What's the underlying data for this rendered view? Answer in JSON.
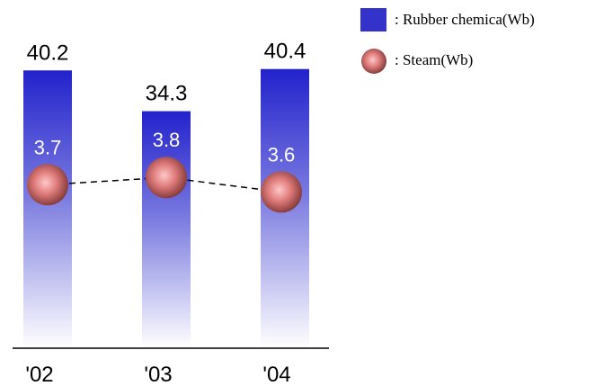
{
  "chart_data": {
    "type": "bar",
    "categories": [
      "'02",
      "'03",
      "'04"
    ],
    "series": [
      {
        "name": ": Rubber chemica(Wb)",
        "kind": "bar",
        "values": [
          40.2,
          34.3,
          40.4
        ],
        "color": "#3333cc"
      },
      {
        "name": ": Steam(Wb)",
        "kind": "line-marker",
        "values": [
          3.7,
          3.8,
          3.6
        ],
        "color": "#cc6666"
      }
    ],
    "xlabel": "",
    "ylabel": "",
    "legend_position": "top-right",
    "grid": false
  }
}
